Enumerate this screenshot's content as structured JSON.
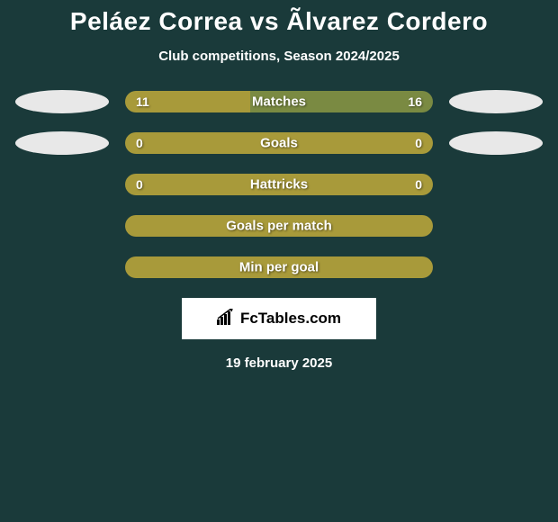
{
  "header": {
    "title": "Peláez Correa vs Ãlvarez Cordero",
    "subtitle": "Club competitions, Season 2024/2025"
  },
  "colors": {
    "background": "#1a3a3a",
    "bar_left": "#a89a3a",
    "bar_right": "#7a8a42",
    "bar_full": "#a89a3a",
    "flag_left": "#e8e8e8",
    "flag_right": "#e8e8e8",
    "text": "#ffffff"
  },
  "stats": [
    {
      "label": "Matches",
      "left_val": "11",
      "right_val": "16",
      "left_pct": 40.7,
      "right_pct": 59.3,
      "show_flags": true
    },
    {
      "label": "Goals",
      "left_val": "0",
      "right_val": "0",
      "left_pct": 100,
      "right_pct": 0,
      "show_flags": true
    },
    {
      "label": "Hattricks",
      "left_val": "0",
      "right_val": "0",
      "left_pct": 100,
      "right_pct": 0,
      "show_flags": false
    },
    {
      "label": "Goals per match",
      "left_val": "",
      "right_val": "",
      "left_pct": 100,
      "right_pct": 0,
      "show_flags": false
    },
    {
      "label": "Min per goal",
      "left_val": "",
      "right_val": "",
      "left_pct": 100,
      "right_pct": 0,
      "show_flags": false
    }
  ],
  "brand": {
    "text": "FcTables.com"
  },
  "footer": {
    "date": "19 february 2025"
  }
}
